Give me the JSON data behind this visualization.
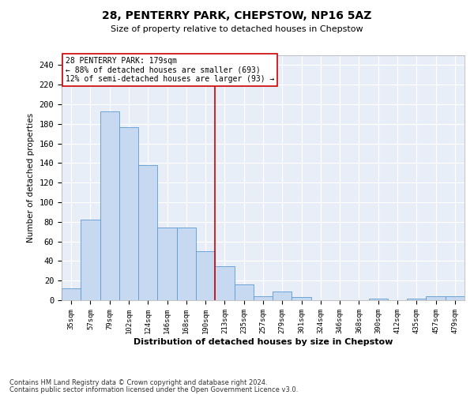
{
  "title": "28, PENTERRY PARK, CHEPSTOW, NP16 5AZ",
  "subtitle": "Size of property relative to detached houses in Chepstow",
  "xlabel": "Distribution of detached houses by size in Chepstow",
  "ylabel": "Number of detached properties",
  "bar_color": "#c6d9f0",
  "bar_edge_color": "#5b9bd5",
  "categories": [
    "35sqm",
    "57sqm",
    "79sqm",
    "102sqm",
    "124sqm",
    "146sqm",
    "168sqm",
    "190sqm",
    "213sqm",
    "235sqm",
    "257sqm",
    "279sqm",
    "301sqm",
    "324sqm",
    "346sqm",
    "368sqm",
    "390sqm",
    "412sqm",
    "435sqm",
    "457sqm",
    "479sqm"
  ],
  "values": [
    12,
    82,
    193,
    177,
    138,
    74,
    74,
    50,
    35,
    16,
    4,
    9,
    3,
    0,
    0,
    0,
    2,
    0,
    2,
    4,
    4
  ],
  "vline_x_index": 7.5,
  "annotation_line1": "28 PENTERRY PARK: 179sqm",
  "annotation_line2": "← 88% of detached houses are smaller (693)",
  "annotation_line3": "12% of semi-detached houses are larger (93) →",
  "vline_color": "#cc0000",
  "annotation_box_color": "#ffffff",
  "annotation_box_edge": "#cc0000",
  "ylim": [
    0,
    250
  ],
  "yticks": [
    0,
    20,
    40,
    60,
    80,
    100,
    120,
    140,
    160,
    180,
    200,
    220,
    240
  ],
  "background_color": "#e8eef8",
  "grid_color": "#ffffff",
  "footnote1": "Contains HM Land Registry data © Crown copyright and database right 2024.",
  "footnote2": "Contains public sector information licensed under the Open Government Licence v3.0."
}
